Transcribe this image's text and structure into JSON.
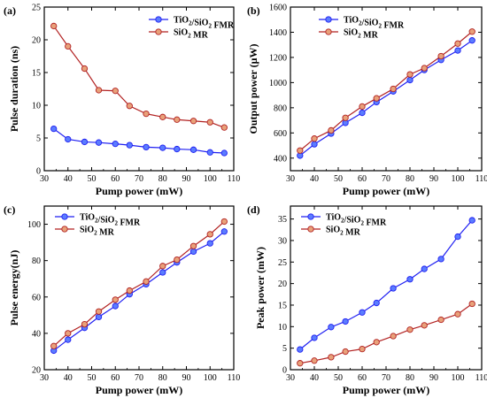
{
  "colors": {
    "blue_series": "#1f1ff2",
    "red_series": "#b22222",
    "red_fill": "#e8a17a",
    "blue_fill": "#5b7cff"
  },
  "chart_data": [
    {
      "id": "a",
      "panel_label": "(a)",
      "type": "line",
      "xlabel": "Pump power (mW)",
      "ylabel": "Pulse duration (ns)",
      "xlim": [
        30,
        110
      ],
      "ylim": [
        0,
        25
      ],
      "xticks": [
        "30",
        "40",
        "50",
        "60",
        "70",
        "80",
        "90",
        "100",
        "110"
      ],
      "yticks": [
        "0",
        "5",
        "10",
        "15",
        "20",
        "25"
      ],
      "legend_position": "top-right",
      "series": [
        {
          "name": "TiO₂/SiO₂ FMR",
          "color": "#1f1ff2",
          "fill": "#5b7cff",
          "x": [
            34,
            40,
            47,
            53,
            60,
            66,
            73,
            80,
            86,
            93,
            100,
            106
          ],
          "y": [
            6.4,
            4.8,
            4.4,
            4.3,
            4.1,
            3.9,
            3.6,
            3.5,
            3.3,
            3.2,
            2.8,
            2.7
          ]
        },
        {
          "name": "SiO₂ MR",
          "color": "#b22222",
          "fill": "#e8a17a",
          "x": [
            34,
            40,
            47,
            53,
            60,
            66,
            73,
            80,
            86,
            93,
            100,
            106
          ],
          "y": [
            22.1,
            19.0,
            15.6,
            12.3,
            12.2,
            9.9,
            8.7,
            8.2,
            7.8,
            7.6,
            7.4,
            6.6
          ]
        }
      ]
    },
    {
      "id": "b",
      "panel_label": "(b)",
      "type": "line",
      "xlabel": "Pump power (mW)",
      "ylabel": "Output power (μW)",
      "xlim": [
        30,
        110
      ],
      "ylim": [
        300,
        1600
      ],
      "xticks": [
        "30",
        "40",
        "50",
        "60",
        "70",
        "80",
        "90",
        "100",
        "110"
      ],
      "yticks": [
        "400",
        "600",
        "800",
        "1000",
        "1200",
        "1400",
        "1600"
      ],
      "legend_position": "top-left",
      "series": [
        {
          "name": "TiO₂/SiO₂ FMR",
          "color": "#1f1ff2",
          "fill": "#5b7cff",
          "x": [
            34,
            40,
            47,
            53,
            60,
            66,
            73,
            80,
            86,
            93,
            100,
            106
          ],
          "y": [
            420,
            510,
            595,
            680,
            760,
            845,
            930,
            1020,
            1100,
            1180,
            1255,
            1335
          ]
        },
        {
          "name": "SiO₂ MR",
          "color": "#b22222",
          "fill": "#e8a17a",
          "x": [
            34,
            40,
            47,
            53,
            60,
            66,
            73,
            80,
            86,
            93,
            100,
            106
          ],
          "y": [
            460,
            555,
            620,
            720,
            810,
            875,
            950,
            1065,
            1115,
            1210,
            1310,
            1405
          ]
        }
      ]
    },
    {
      "id": "c",
      "panel_label": "(c)",
      "type": "line",
      "xlabel": "Pump power (mW)",
      "ylabel": "Pulse energy(nJ)",
      "xlim": [
        30,
        110
      ],
      "ylim": [
        20,
        110
      ],
      "xticks": [
        "30",
        "40",
        "50",
        "60",
        "70",
        "80",
        "90",
        "100",
        "110"
      ],
      "yticks": [
        "20",
        "40",
        "60",
        "80",
        "100"
      ],
      "legend_position": "top-left",
      "series": [
        {
          "name": "TiO₂/SiO₂ FMR",
          "color": "#1f1ff2",
          "fill": "#5b7cff",
          "x": [
            34,
            40,
            47,
            53,
            60,
            66,
            73,
            80,
            86,
            93,
            100,
            106
          ],
          "y": [
            30.5,
            36.5,
            43.0,
            49.0,
            55.0,
            61.5,
            67.0,
            73.5,
            79.0,
            85.0,
            89.5,
            96.0
          ]
        },
        {
          "name": "SiO₂ MR",
          "color": "#b22222",
          "fill": "#e8a17a",
          "x": [
            34,
            40,
            47,
            53,
            60,
            66,
            73,
            80,
            86,
            93,
            100,
            106
          ],
          "y": [
            33.0,
            40.0,
            45.0,
            52.0,
            58.5,
            63.5,
            68.5,
            77.0,
            80.5,
            88.0,
            94.5,
            101.5
          ]
        }
      ]
    },
    {
      "id": "d",
      "panel_label": "(d)",
      "type": "line",
      "xlabel": "Pump power (mW)",
      "ylabel": "Peak power (mW)",
      "xlim": [
        30,
        110
      ],
      "ylim": [
        0,
        38
      ],
      "xticks": [
        "30",
        "40",
        "50",
        "60",
        "70",
        "80",
        "90",
        "100",
        "110"
      ],
      "yticks": [
        "0",
        "5",
        "10",
        "15",
        "20",
        "25",
        "30",
        "35"
      ],
      "legend_position": "top-left",
      "series": [
        {
          "name": "TiO₂/SiO₂ FMR",
          "color": "#1f1ff2",
          "fill": "#5b7cff",
          "x": [
            34,
            40,
            47,
            53,
            60,
            66,
            73,
            80,
            86,
            93,
            100,
            106
          ],
          "y": [
            4.7,
            7.4,
            9.9,
            11.2,
            13.3,
            15.5,
            18.9,
            21.0,
            23.4,
            25.7,
            30.9,
            34.7
          ]
        },
        {
          "name": "SiO₂ MR",
          "color": "#b22222",
          "fill": "#e8a17a",
          "x": [
            34,
            40,
            47,
            53,
            60,
            66,
            73,
            80,
            86,
            93,
            100,
            106
          ],
          "y": [
            1.5,
            2.1,
            2.9,
            4.2,
            4.8,
            6.4,
            7.8,
            9.3,
            10.3,
            11.6,
            12.9,
            15.3
          ]
        }
      ]
    }
  ]
}
